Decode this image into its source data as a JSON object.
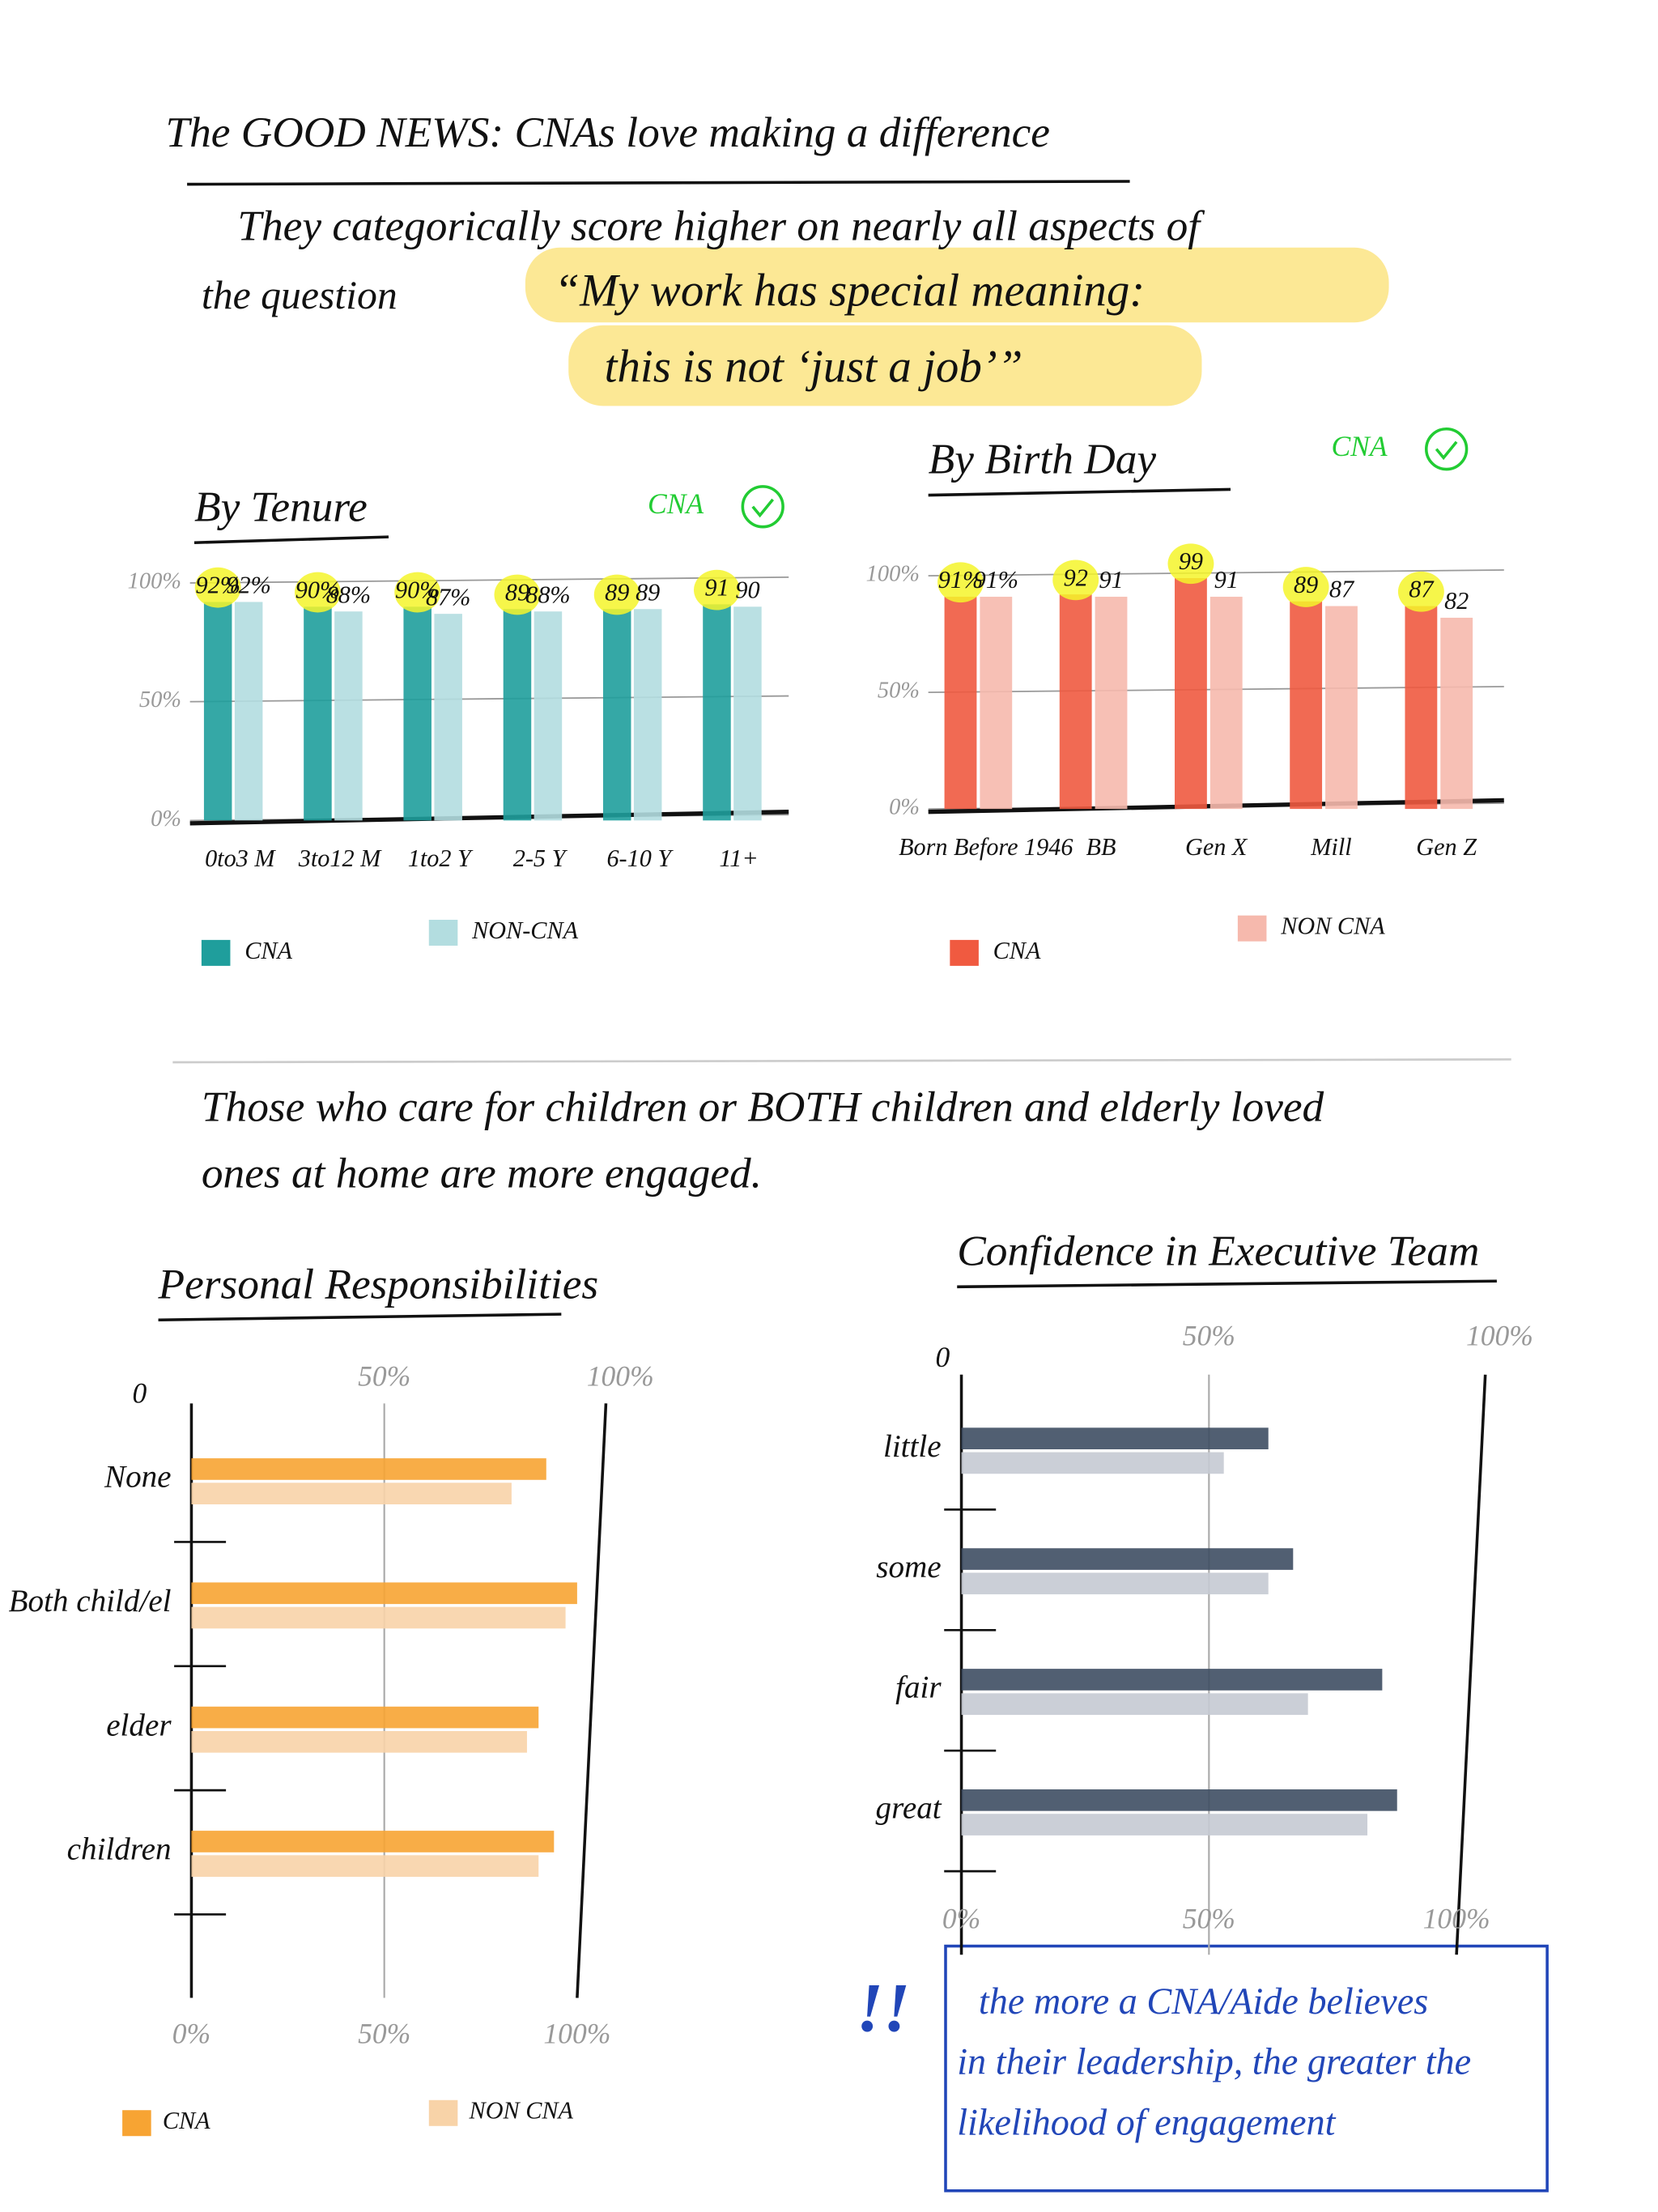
{
  "heading": "The GOOD NEWS: CNAs love making a difference",
  "intro": [
    "They categorically score higher on nearly all aspects of",
    "the question"
  ],
  "quote": [
    "“My work has special meaning:",
    "this is not ‘just a job’”"
  ],
  "section2": [
    "Those who care for children or BOTH children and elderly loved",
    "ones at home are more engaged."
  ],
  "note": {
    "mark": "!!",
    "lines": [
      "the more a CNA/Aide believes",
      "in their leadership, the greater the",
      "likelihood of engagement"
    ]
  },
  "chart_data": [
    {
      "type": "bar",
      "title": "By Tenure",
      "annotation": "CNA",
      "annotation_color": "#22cc33",
      "categories": [
        "0to3 M",
        "3to12 M",
        "1to2 Y",
        "2-5 Y",
        "6-10 Y",
        "11+"
      ],
      "series": [
        {
          "name": "CNA",
          "color": "#1f9e9c",
          "values": [
            92,
            90,
            90,
            89,
            89,
            91
          ],
          "value_labels": [
            "92%",
            "90%",
            "90%",
            "89",
            "89",
            "91"
          ]
        },
        {
          "name": "NON-CNA",
          "color": "#b3dde0",
          "values": [
            92,
            88,
            87,
            88,
            89,
            90
          ],
          "value_labels": [
            "92%",
            "88%",
            "87%",
            "88%",
            "89",
            "90"
          ]
        }
      ],
      "ylim": [
        0,
        100
      ],
      "yticks": [
        {
          "value": 0,
          "label": "0%"
        },
        {
          "value": 50,
          "label": "50%"
        },
        {
          "value": 100,
          "label": "100%"
        }
      ],
      "grid": true,
      "label_highlight": "#f4f42a"
    },
    {
      "type": "bar",
      "title": "By Birth Day",
      "annotation": "CNA",
      "annotation_color": "#22cc33",
      "categories": [
        "Born Before 1946",
        "BB",
        "Gen X",
        "Mill",
        "Gen Z"
      ],
      "series": [
        {
          "name": "CNA",
          "color": "#f05a40",
          "values": [
            91,
            92,
            99,
            89,
            87
          ],
          "value_labels": [
            "91%",
            "92",
            "99",
            "89",
            "87"
          ]
        },
        {
          "name": "NON CNA",
          "color": "#f6b9ad",
          "values": [
            91,
            91,
            91,
            87,
            82
          ],
          "value_labels": [
            "91%",
            "91",
            "91",
            "87",
            "82"
          ]
        }
      ],
      "ylim": [
        0,
        100
      ],
      "yticks": [
        {
          "value": 0,
          "label": "0%"
        },
        {
          "value": 50,
          "label": "50%"
        },
        {
          "value": 100,
          "label": "100%"
        }
      ],
      "grid": true,
      "label_highlight": "#f4f42a"
    },
    {
      "type": "bar",
      "orientation": "horizontal",
      "title": "Personal Responsibilities",
      "categories": [
        "None",
        "Both child/el",
        "elder",
        "children"
      ],
      "series": [
        {
          "name": "CNA",
          "color": "#f7a433",
          "values": [
            92,
            100,
            90,
            94
          ]
        },
        {
          "name": "NON CNA",
          "color": "#f8d3a8",
          "values": [
            83,
            97,
            87,
            90
          ]
        }
      ],
      "xlim": [
        0,
        100
      ],
      "xticks": [
        {
          "value": 0,
          "label": "0%"
        },
        {
          "value": 50,
          "label": "50%"
        },
        {
          "value": 100,
          "label": "100%"
        }
      ],
      "top_xticks": [
        0,
        {
          "value": 50,
          "label": "50%"
        },
        {
          "value": 100,
          "label": "100%"
        }
      ],
      "grid": true
    },
    {
      "type": "bar",
      "orientation": "horizontal",
      "title": "Confidence in Executive Team",
      "categories": [
        "little",
        "some",
        "fair",
        "great"
      ],
      "series": [
        {
          "color": "#3e4e63",
          "values": [
            62,
            67,
            85,
            88
          ]
        },
        {
          "color": "#c5cad3",
          "values": [
            53,
            62,
            70,
            82
          ]
        }
      ],
      "xlim": [
        0,
        100
      ],
      "xticks": [
        {
          "value": 0,
          "label": "0%"
        },
        {
          "value": 50,
          "label": "50%"
        },
        {
          "value": 100,
          "label": "100%"
        }
      ],
      "top_xticks": [
        0,
        {
          "value": 50,
          "label": "50%"
        },
        {
          "value": 100,
          "label": "100%"
        }
      ],
      "grid": true
    }
  ]
}
